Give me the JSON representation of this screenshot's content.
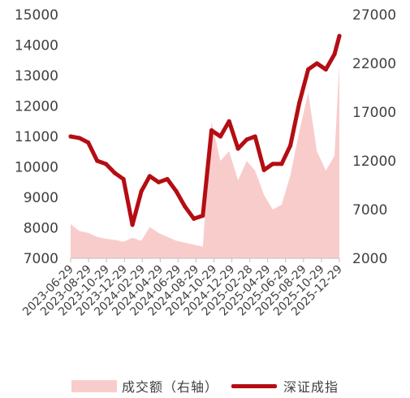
{
  "chart_data": {
    "type": "line+area",
    "legend_placement": "bottom",
    "grid": false,
    "left_axis": {
      "range": [
        7000,
        15000
      ],
      "ticks": [
        "7000",
        "8000",
        "9000",
        "10000",
        "11000",
        "12000",
        "13000",
        "14000",
        "15000"
      ]
    },
    "right_axis": {
      "range": [
        2000,
        27000
      ],
      "ticks": [
        "2000",
        "7000",
        "12000",
        "17000",
        "22000",
        "27000"
      ]
    },
    "x_tick_labels": [
      "2023-06-29",
      "2023-08-29",
      "2023-10-29",
      "2023-12-29",
      "2024-02-29",
      "2024-04-29",
      "2024-06-29",
      "2024-08-29",
      "2024-10-29",
      "2024-12-29",
      "2025-02-28",
      "2025-04-29",
      "2025-06-29",
      "2025-08-29",
      "2025-10-29",
      "2025-12-29"
    ],
    "x": [
      "2023-06-29",
      "2023-07-29",
      "2023-08-29",
      "2023-09-29",
      "2023-10-29",
      "2023-11-29",
      "2023-12-29",
      "2024-01-29",
      "2024-02-29",
      "2024-03-29",
      "2024-04-29",
      "2024-05-29",
      "2024-06-29",
      "2024-07-29",
      "2024-08-29",
      "2024-09-29",
      "2024-10-29",
      "2024-11-29",
      "2024-12-29",
      "2025-01-29",
      "2025-02-28",
      "2025-03-29",
      "2025-04-29",
      "2025-05-29",
      "2025-06-29",
      "2025-07-29",
      "2025-08-29",
      "2025-09-29",
      "2025-10-29",
      "2025-11-29",
      "2025-12-29",
      "2026-01-15"
    ],
    "series": [
      {
        "name": "深证成指",
        "axis": "left",
        "kind": "line",
        "color": "#b40d13",
        "values": [
          11000,
          10950,
          10800,
          10200,
          10100,
          9800,
          9600,
          8100,
          9200,
          9700,
          9500,
          9600,
          9200,
          8700,
          8300,
          8400,
          11200,
          11000,
          11500,
          10600,
          10900,
          11000,
          9900,
          10100,
          10100,
          10700,
          12100,
          13200,
          13400,
          13200,
          13700,
          14300
        ]
      },
      {
        "name": "成交额（右轴）",
        "axis": "right",
        "kind": "area",
        "color": "#f9cccc",
        "values": [
          5500,
          4800,
          4600,
          4200,
          4000,
          3900,
          3700,
          4100,
          3800,
          5200,
          4600,
          4200,
          3800,
          3600,
          3400,
          3200,
          16000,
          12000,
          13000,
          10000,
          12000,
          11000,
          8500,
          7000,
          7500,
          10500,
          15000,
          19000,
          13000,
          11000,
          12500,
          22000
        ]
      }
    ]
  },
  "legend": {
    "area_label": "成交额（右轴）",
    "line_label": "深证成指"
  },
  "colors": {
    "line": "#b40d13",
    "area": "#f9cccc",
    "axis": "#bfbfbf",
    "text": "#404040"
  }
}
